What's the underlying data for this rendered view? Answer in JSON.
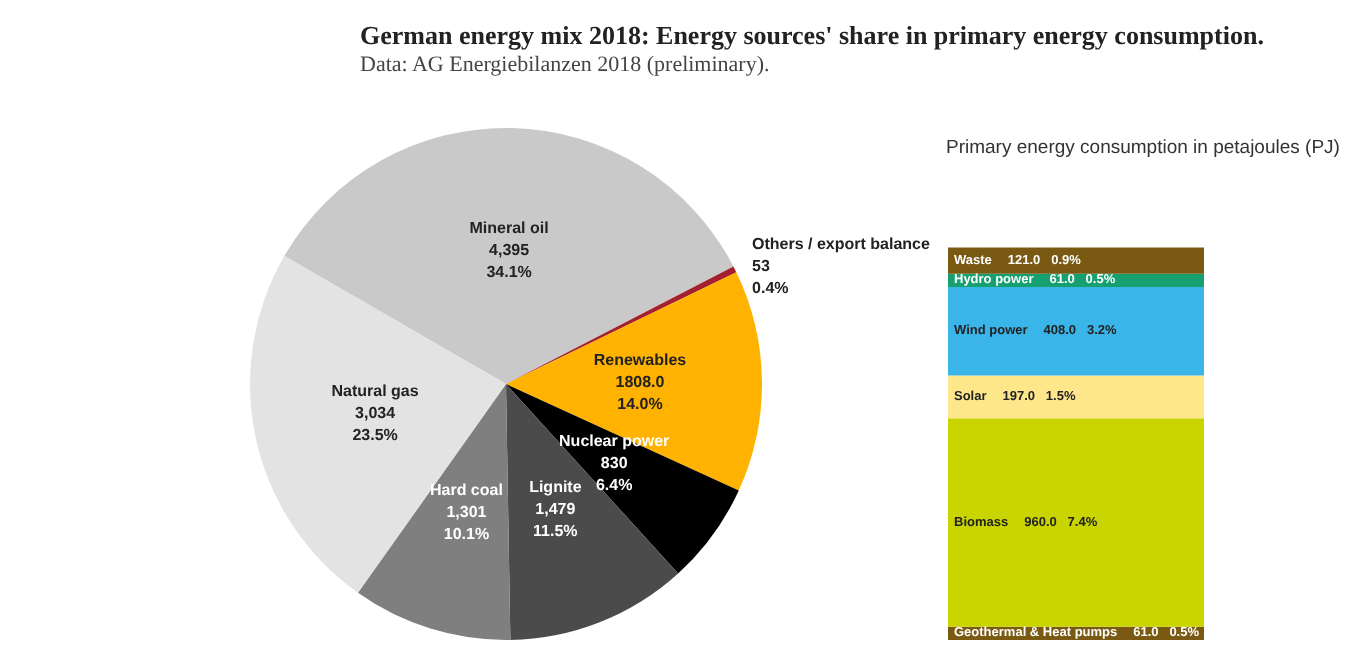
{
  "chart_data": [
    {
      "type": "pie",
      "title": "German energy mix 2018: Energy sources' share in primary energy consumption.",
      "subtitle": "Data: AG Energiebilanzen 2018 (preliminary).",
      "categories": [
        "Mineral oil",
        "Others / export balance",
        "Renewables",
        "Nuclear power",
        "Lignite",
        "Hard coal",
        "Natural gas"
      ],
      "values": [
        4395,
        53,
        1808.0,
        830,
        1479,
        1301,
        3034
      ],
      "value_labels": [
        "4,395\n34.1%",
        "53\n0.4%",
        "1808.0\n14.0%",
        "830\n6.4%",
        "1,479\n11.5%",
        "1,301\n10.1%",
        "3,034\n23.5%"
      ],
      "colors": [
        "#c9c9c9",
        "#a3202c",
        "#ffb300",
        "#000000",
        "#4b4b4b",
        "#7f7f7f",
        "#e3e3e3"
      ],
      "legend": false
    },
    {
      "type": "bar",
      "stacked": true,
      "title": "Primary energy consumption in petajoules (PJ)",
      "categories": [
        null
      ],
      "legend": false,
      "series": [
        {
          "name": "Geothermal & Heat pumps",
          "color": "#7a5a12",
          "values": [
            61.0
          ],
          "value_labels": [
            "61.0   0.5%"
          ]
        },
        {
          "name": "Biomass",
          "color": "#c9d400",
          "values": [
            960.0
          ],
          "value_labels": [
            "960.0   7.4%"
          ]
        },
        {
          "name": "Solar",
          "color": "#fde78a",
          "values": [
            197.0
          ],
          "value_labels": [
            "197.0   1.5%"
          ]
        },
        {
          "name": "Wind power",
          "color": "#3ab5ea",
          "values": [
            408.0
          ],
          "value_labels": [
            "408.0   3.2%"
          ]
        },
        {
          "name": "Hydro power",
          "color": "#16a070",
          "values": [
            61.0
          ],
          "value_labels": [
            "61.0   0.5%"
          ]
        },
        {
          "name": "Waste",
          "color": "#7a5a12",
          "values": [
            121.0
          ],
          "value_labels": [
            "121.0   0.9%"
          ]
        }
      ]
    }
  ]
}
